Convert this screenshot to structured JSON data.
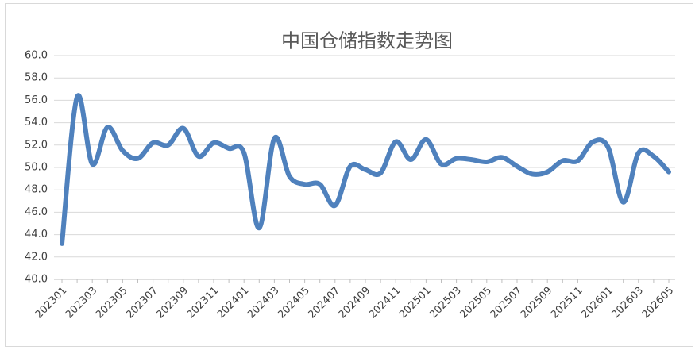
{
  "chart_data": {
    "type": "line",
    "title": "中国仓储指数走势图",
    "categories": [
      "202301",
      null,
      "202303",
      null,
      "202305",
      null,
      "202307",
      null,
      "202309",
      null,
      "202311",
      null,
      "202401",
      null,
      "202403",
      null,
      "202405",
      null,
      "202407",
      null,
      "202409",
      null,
      "202411",
      null,
      "202501",
      null,
      "202503",
      null,
      "202505",
      null,
      "202507",
      null,
      "202509",
      null,
      "202511",
      null,
      "202601",
      null,
      "202603",
      null,
      "202605"
    ],
    "values": [
      43.2,
      56.3,
      50.3,
      53.6,
      51.5,
      50.8,
      52.2,
      52.0,
      53.5,
      51.0,
      52.2,
      51.7,
      51.3,
      44.6,
      52.6,
      49.2,
      48.5,
      48.5,
      46.6,
      50.1,
      49.8,
      49.5,
      52.3,
      50.7,
      52.5,
      50.3,
      50.8,
      50.7,
      50.5,
      50.9,
      50.1,
      49.4,
      49.6,
      50.6,
      50.6,
      52.3,
      51.8,
      46.9,
      51.3,
      51.0,
      49.6
    ],
    "color": "#4f81bd",
    "ylim": [
      40,
      60
    ],
    "yticks": [
      {
        "value": 40,
        "label": "40.0"
      },
      {
        "value": 42,
        "label": "42.0"
      },
      {
        "value": 44,
        "label": "44.0"
      },
      {
        "value": 46,
        "label": "46.0"
      },
      {
        "value": 48,
        "label": "48.0"
      },
      {
        "value": 50,
        "label": "50.0"
      },
      {
        "value": 52,
        "label": "52.0"
      },
      {
        "value": 54,
        "label": "54.0"
      },
      {
        "value": 56,
        "label": "56.0"
      },
      {
        "value": 58,
        "label": "58.0"
      },
      {
        "value": 60,
        "label": "60.0"
      }
    ],
    "grid": true
  }
}
